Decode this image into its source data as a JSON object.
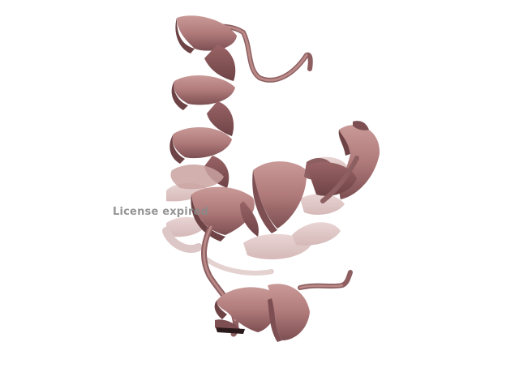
{
  "viewer": {
    "watermark_text": "License expired"
  },
  "molecule": {
    "representation": "cartoon",
    "ribbon_color": "#b07a7a",
    "ribbon_shadow_color": "#7d4f52",
    "ribbon_highlight_color": "#c99a98",
    "background_color": "#ffffff"
  }
}
